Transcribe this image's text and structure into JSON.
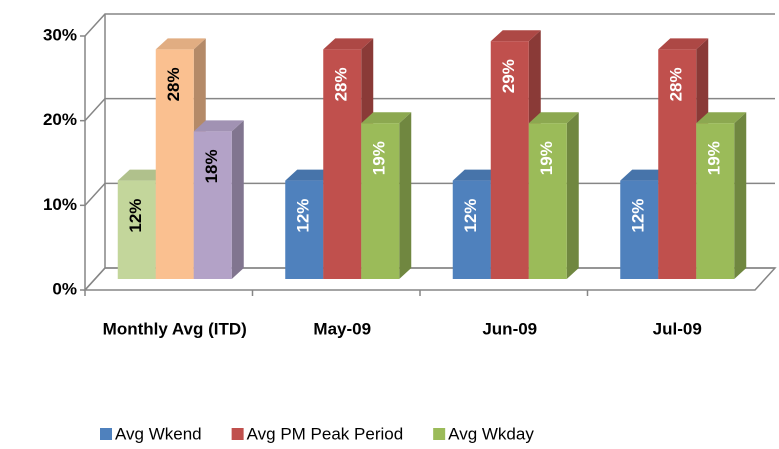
{
  "chart_data": {
    "type": "bar3d",
    "categories": [
      "Monthly Avg (ITD)",
      "May-09",
      "Jun-09",
      "Jul-09"
    ],
    "series": [
      {
        "name": "Avg Wkend",
        "color": "#4f81bd",
        "point_colors": [
          "#c3d69b",
          "#4f81bd",
          "#4f81bd",
          "#4f81bd"
        ],
        "values": [
          12,
          12,
          12,
          12
        ],
        "value_labels": [
          "12%",
          "12%",
          "12%",
          "12%"
        ]
      },
      {
        "name": "Avg PM Peak Period",
        "color": "#c0504d",
        "point_colors": [
          "#fac090",
          "#c0504d",
          "#c0504d",
          "#c0504d"
        ],
        "values": [
          28,
          28,
          29,
          28
        ],
        "value_labels": [
          "28%",
          "28%",
          "29%",
          "28%"
        ]
      },
      {
        "name": "Avg Wkday",
        "color": "#9bbb59",
        "point_colors": [
          "#b3a2c7",
          "#9bbb59",
          "#9bbb59",
          "#9bbb59"
        ],
        "values": [
          18,
          19,
          19,
          19
        ],
        "value_labels": [
          "18%",
          "19%",
          "19%",
          "19%"
        ]
      }
    ],
    "ylim": [
      0,
      30
    ],
    "yticks": [
      {
        "value": 0,
        "label": "0%"
      },
      {
        "value": 10,
        "label": "10%"
      },
      {
        "value": 20,
        "label": "20%"
      },
      {
        "value": 30,
        "label": "30%"
      }
    ],
    "grid": true,
    "legend": "bottom"
  }
}
